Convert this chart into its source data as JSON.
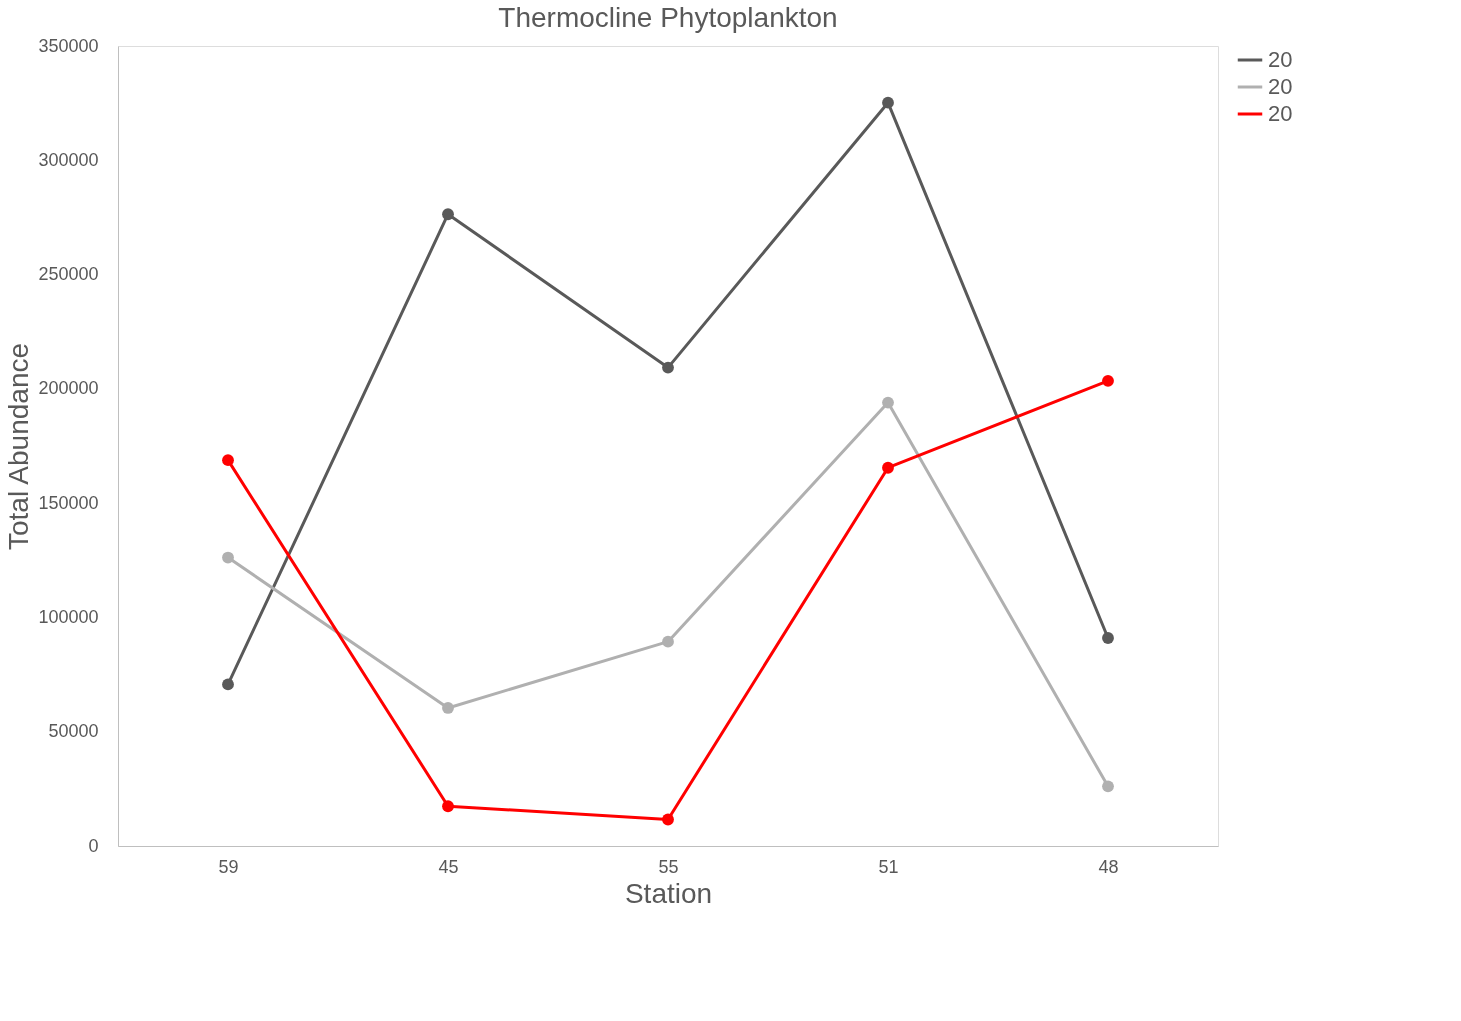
{
  "chart_data": {
    "type": "line",
    "title": "Thermocline Phytoplankton",
    "xlabel": "Station",
    "ylabel": "Total Abundance",
    "categories": [
      "59",
      "45",
      "55",
      "51",
      "48"
    ],
    "series": [
      {
        "name": "20",
        "color": "#595959",
        "values": [
          70700,
          276400,
          209300,
          325200,
          91000
        ]
      },
      {
        "name": "20",
        "color": "#b0b0b0",
        "values": [
          126200,
          60400,
          89400,
          194000,
          26100
        ]
      },
      {
        "name": "20",
        "color": "#ff0000",
        "values": [
          168800,
          17400,
          11600,
          165500,
          203500
        ]
      }
    ],
    "ylim": [
      0,
      350000
    ],
    "yticks": [
      0,
      50000,
      100000,
      150000,
      200000,
      250000,
      300000,
      350000
    ],
    "grid": false,
    "legend": "right",
    "marker": "circle",
    "line_style": "solid"
  }
}
